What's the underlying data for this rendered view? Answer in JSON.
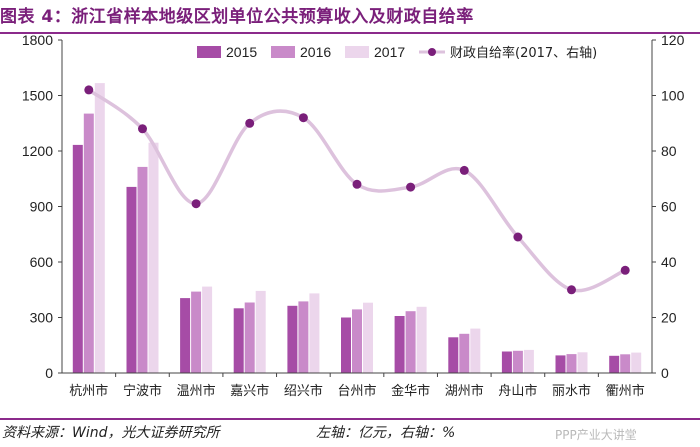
{
  "header": {
    "title": "图表 4：浙江省样本地级区划单位公共预算收入及财政自给率"
  },
  "footer": {
    "source": "资料来源：Wind，光大证券研究所",
    "axis_note": "左轴：亿元，右轴：%",
    "watermark": "PPP产业大讲堂"
  },
  "colors": {
    "s2015": "#a64ca6",
    "s2016": "#c98ac9",
    "s2017": "#ecd6ec",
    "line": "#ddc2dd",
    "marker": "#7a1f7a",
    "accent": "#7a1f7a"
  },
  "chart_data": {
    "type": "bar",
    "title": "",
    "xlabel": "",
    "ylabel": "",
    "categories": [
      "杭州市",
      "宁波市",
      "温州市",
      "嘉兴市",
      "绍兴市",
      "台州市",
      "金华市",
      "湖州市",
      "舟山市",
      "丽水市",
      "衢州市"
    ],
    "ylim": [
      0,
      1800
    ],
    "y_ticks": [
      0,
      300,
      600,
      900,
      1200,
      1500,
      1800
    ],
    "y2lim": [
      0,
      120
    ],
    "y2_ticks": [
      0,
      20,
      40,
      60,
      80,
      100,
      120
    ],
    "grid": false,
    "legend_position": "top",
    "series": [
      {
        "name": "2015",
        "type": "bar",
        "axis": "left",
        "values": [
          1233,
          1006,
          405,
          350,
          363,
          300,
          308,
          193,
          116,
          95,
          93
        ]
      },
      {
        "name": "2016",
        "type": "bar",
        "axis": "left",
        "values": [
          1402,
          1114,
          440,
          381,
          387,
          344,
          334,
          212,
          120,
          102,
          101
        ]
      },
      {
        "name": "2017",
        "type": "bar",
        "axis": "left",
        "values": [
          1567,
          1245,
          467,
          444,
          430,
          380,
          358,
          240,
          125,
          112,
          110
        ]
      },
      {
        "name": "财政自给率(2017、右轴)",
        "type": "line",
        "axis": "right",
        "values": [
          102,
          88,
          61,
          90,
          92,
          68,
          67,
          73,
          49,
          30,
          37
        ]
      }
    ]
  }
}
